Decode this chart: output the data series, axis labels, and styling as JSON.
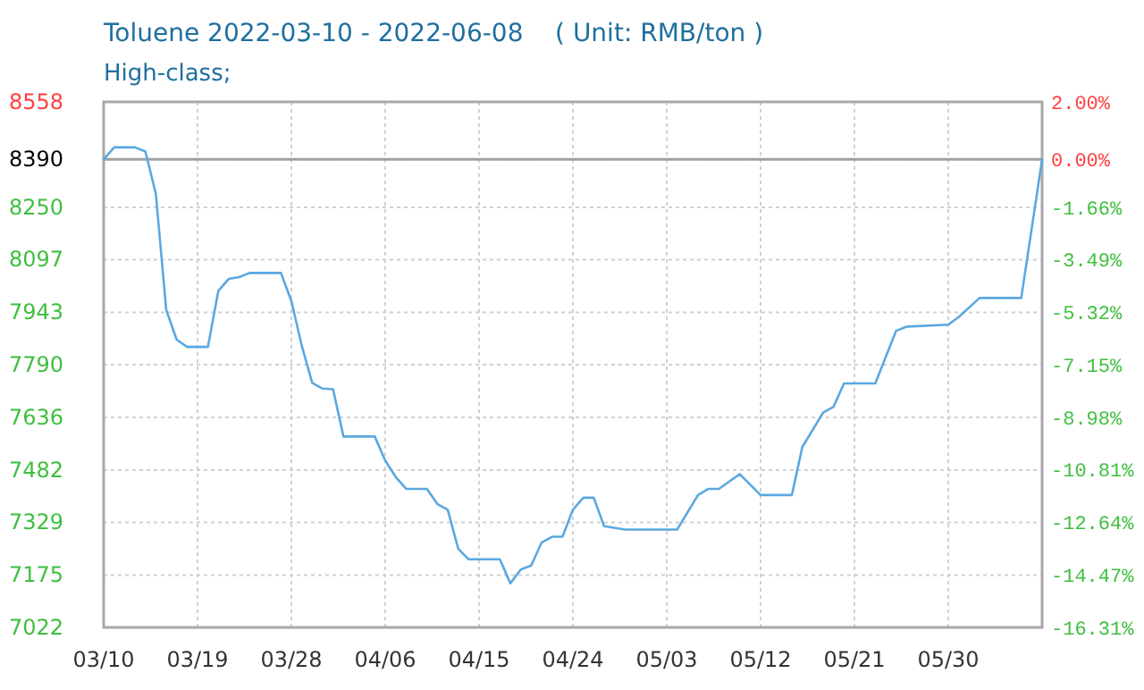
{
  "chart_data": {
    "type": "line",
    "title": "Toluene 2022-03-10 - 2022-06-08    ( Unit: RMB/ton )",
    "subtitle": "High-class;",
    "x": [
      "2022-03-10",
      "2022-03-11",
      "2022-03-13",
      "2022-03-14",
      "2022-03-15",
      "2022-03-16",
      "2022-03-17",
      "2022-03-18",
      "2022-03-20",
      "2022-03-21",
      "2022-03-22",
      "2022-03-23",
      "2022-03-24",
      "2022-03-27",
      "2022-03-28",
      "2022-03-29",
      "2022-03-30",
      "2022-03-31",
      "2022-04-01",
      "2022-04-02",
      "2022-04-05",
      "2022-04-06",
      "2022-04-07",
      "2022-04-08",
      "2022-04-10",
      "2022-04-11",
      "2022-04-12",
      "2022-04-13",
      "2022-04-14",
      "2022-04-17",
      "2022-04-18",
      "2022-04-19",
      "2022-04-20",
      "2022-04-21",
      "2022-04-22",
      "2022-04-23",
      "2022-04-24",
      "2022-04-25",
      "2022-04-26",
      "2022-04-27",
      "2022-04-29",
      "2022-05-04",
      "2022-05-06",
      "2022-05-07",
      "2022-05-08",
      "2022-05-10",
      "2022-05-12",
      "2022-05-15",
      "2022-05-16",
      "2022-05-18",
      "2022-05-19",
      "2022-05-20",
      "2022-05-23",
      "2022-05-25",
      "2022-05-26",
      "2022-05-30",
      "2022-05-31",
      "2022-06-02",
      "2022-06-06",
      "2022-06-08"
    ],
    "series": [
      {
        "color": "#5aa8e0",
        "values": [
          8390,
          8425,
          8425,
          8413,
          8290,
          7950,
          7863,
          7842,
          7842,
          8006,
          8041,
          8046,
          8058,
          8058,
          7976,
          7845,
          7737,
          7720,
          7718,
          7580,
          7580,
          7510,
          7462,
          7427,
          7427,
          7383,
          7366,
          7252,
          7221,
          7221,
          7151,
          7191,
          7203,
          7270,
          7287,
          7287,
          7366,
          7401,
          7401,
          7318,
          7308,
          7308,
          7409,
          7427,
          7427,
          7470,
          7409,
          7409,
          7549,
          7650,
          7667,
          7735,
          7735,
          7889,
          7901,
          7907,
          7929,
          7985,
          7985,
          8390
        ]
      }
    ],
    "xlim": [
      "2022-03-10",
      "2022-06-08"
    ],
    "xticks": [
      {
        "value": "2022-03-10",
        "label": "03/10"
      },
      {
        "value": "2022-03-19",
        "label": "03/19"
      },
      {
        "value": "2022-03-28",
        "label": "03/28"
      },
      {
        "value": "2022-04-06",
        "label": "04/06"
      },
      {
        "value": "2022-04-15",
        "label": "04/15"
      },
      {
        "value": "2022-04-24",
        "label": "04/24"
      },
      {
        "value": "2022-05-03",
        "label": "05/03"
      },
      {
        "value": "2022-05-12",
        "label": "05/12"
      },
      {
        "value": "2022-05-21",
        "label": "05/21"
      },
      {
        "value": "2022-05-30",
        "label": "05/30"
      }
    ],
    "ylim": [
      7022,
      8558
    ],
    "yticks": [
      7022,
      7175,
      7329,
      7482,
      7636,
      7790,
      7943,
      8097,
      8250,
      8390,
      8558
    ],
    "y2lim": [
      -16.31,
      2.0
    ],
    "y2ticks": [
      {
        "value": -16.31,
        "label": "-16.31%"
      },
      {
        "value": -14.47,
        "label": "-14.47%"
      },
      {
        "value": -12.64,
        "label": "-12.64%"
      },
      {
        "value": -10.81,
        "label": "-10.81%"
      },
      {
        "value": -8.98,
        "label": "-8.98%"
      },
      {
        "value": -7.15,
        "label": "-7.15%"
      },
      {
        "value": -5.32,
        "label": "-5.32%"
      },
      {
        "value": -3.49,
        "label": "-3.49%"
      },
      {
        "value": -1.66,
        "label": "-1.66%"
      },
      {
        "value": 0,
        "label": "0.00%"
      },
      {
        "value": 2.0,
        "label": "2.00%"
      }
    ],
    "ref_lines": [
      {
        "axis": "y",
        "value": 8390,
        "color": "#a0a0a0"
      }
    ],
    "grid": true,
    "marker": "none",
    "line_style": "solid"
  }
}
